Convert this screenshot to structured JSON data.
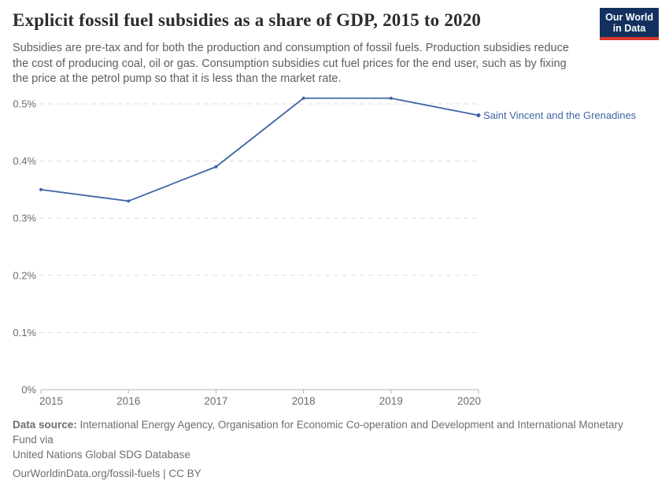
{
  "header": {
    "title": "Explicit fossil fuel subsidies as a share of GDP, 2015 to 2020",
    "subtitle_lines": [
      "Subsidies are pre-tax and for both the production and consumption of fossil fuels. Production subsidies reduce",
      "the cost of producing coal, oil or gas. Consumption subsidies cut fuel prices for the end user, such as by fixing",
      "the price at the petrol pump so that it is less than the market rate."
    ],
    "logo": {
      "line1": "Our World",
      "line2": "in Data",
      "bg_color": "#12315F",
      "accent_color": "#D7382D",
      "text_color": "#FFFFFF"
    }
  },
  "chart_data": {
    "type": "line",
    "title": "Explicit fossil fuel subsidies as a share of GDP, 2015 to 2020",
    "x": [
      2015,
      2016,
      2017,
      2018,
      2019,
      2020
    ],
    "x_tick_labels": [
      "2015",
      "2016",
      "2017",
      "2018",
      "2019",
      "2020"
    ],
    "series": [
      {
        "name": "Saint Vincent and the Grenadines",
        "values": [
          0.35,
          0.33,
          0.39,
          0.51,
          0.51,
          0.48
        ],
        "unit": "%",
        "color": "#4064A6"
      }
    ],
    "xlabel": "",
    "ylabel": "",
    "ylim": [
      0,
      0.55
    ],
    "y_ticks": [
      0,
      0.1,
      0.2,
      0.3,
      0.4,
      0.5
    ],
    "y_tick_labels": [
      "0%",
      "0.1%",
      "0.2%",
      "0.3%",
      "0.4%",
      "0.5%"
    ],
    "grid": "horizontal-dashed",
    "legend_position": "line-end-label",
    "colors": {
      "gridline": "#DCDCDC",
      "axis": "#B5B5B5",
      "tick_label": "#6B6B6B"
    }
  },
  "footer": {
    "source_label": "Data source:",
    "source_line1": "International Energy Agency, Organisation for Economic Co-operation and Development and International Monetary Fund via",
    "source_line2": "United Nations Global SDG Database",
    "citation": "OurWorldinData.org/fossil-fuels | CC BY"
  }
}
